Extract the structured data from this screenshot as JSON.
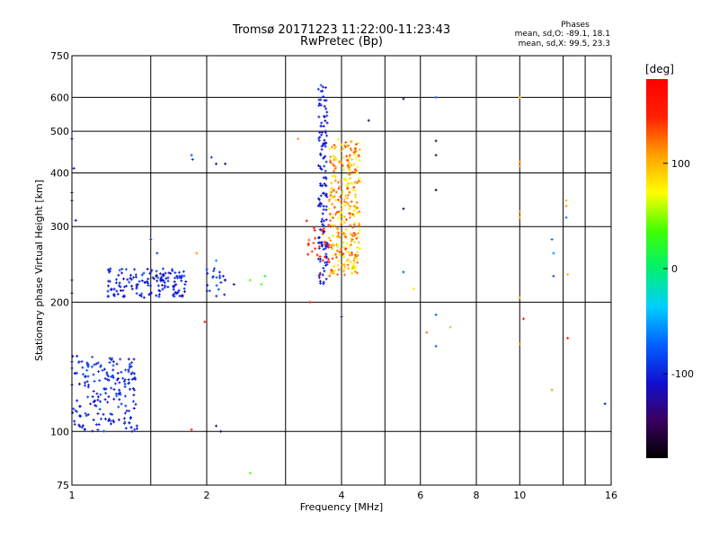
{
  "header": {
    "title": "Tromsø 20171223 11:22:00-11:23:43",
    "subtitle": "RwPretec (Bp)",
    "stats_title": "Phases",
    "stats_o": "mean, sd,O: -89.1, 18.1",
    "stats_x": "mean, sd,X:  99.5, 23.3"
  },
  "colors": {
    "grid": "#000000",
    "frame": "#000000",
    "colormap": [
      "#000000",
      "#3a0060",
      "#1010d0",
      "#0060ff",
      "#00d0ff",
      "#00f070",
      "#40ff00",
      "#ffff00",
      "#ffa000",
      "#ff2000",
      "#ff0000"
    ]
  },
  "chart_data": {
    "type": "scatter",
    "title": "Tromsø 20171223 11:22:00-11:23:43",
    "subtitle": "RwPretec (Bp)",
    "xlabel": "Frequency [MHz]",
    "ylabel": "Stationary phase Virtual Height [km]",
    "x_scale": "log",
    "y_scale": "log",
    "xlim": [
      1,
      16
    ],
    "ylim": [
      75,
      750
    ],
    "xticks": [
      1,
      2,
      4,
      6,
      8,
      10,
      16
    ],
    "xtick_labels": [
      "1",
      "2",
      "4",
      "6",
      "8",
      "10",
      "16"
    ],
    "yticks": [
      75,
      100,
      200,
      300,
      400,
      500,
      600,
      750
    ],
    "ytick_labels": [
      "75",
      "100",
      "200",
      "300",
      "400",
      "500",
      "600",
      "750"
    ],
    "grid": true,
    "colorbar": {
      "unit": "[deg]",
      "range": [
        -180,
        180
      ],
      "ticks": [
        100,
        0,
        -100
      ],
      "tick_labels": [
        "100",
        "0",
        "-100"
      ]
    },
    "clusters": [
      {
        "x": [
          1.0,
          1.4
        ],
        "y": [
          100,
          150
        ],
        "phase": [
          -120,
          -80
        ],
        "n": 190
      },
      {
        "x": [
          1.2,
          1.8
        ],
        "y": [
          205,
          240
        ],
        "phase": [
          -120,
          -85
        ],
        "n": 150
      },
      {
        "x": [
          2.0,
          2.2
        ],
        "y": [
          205,
          240
        ],
        "phase": [
          -110,
          -80
        ],
        "n": 20
      },
      {
        "x": [
          3.55,
          3.72
        ],
        "y": [
          220,
          640
        ],
        "phase": [
          -120,
          -90
        ],
        "n": 130
      },
      {
        "x": [
          3.75,
          4.4
        ],
        "y": [
          230,
          480
        ],
        "phase": [
          60,
          140
        ],
        "n": 300
      },
      {
        "x": [
          3.3,
          3.8
        ],
        "y": [
          230,
          310
        ],
        "phase": [
          130,
          170
        ],
        "n": 30
      }
    ],
    "points": [
      {
        "x": 1.0,
        "y": 480,
        "phase": -110
      },
      {
        "x": 1.01,
        "y": 410,
        "phase": -110
      },
      {
        "x": 1.0,
        "y": 360,
        "phase": -140
      },
      {
        "x": 1.0,
        "y": 345,
        "phase": -150
      },
      {
        "x": 1.02,
        "y": 310,
        "phase": -110
      },
      {
        "x": 1.0,
        "y": 225,
        "phase": -120
      },
      {
        "x": 1.0,
        "y": 210,
        "phase": -150
      },
      {
        "x": 1.5,
        "y": 280,
        "phase": -80
      },
      {
        "x": 1.55,
        "y": 260,
        "phase": -90
      },
      {
        "x": 1.85,
        "y": 440,
        "phase": -80
      },
      {
        "x": 1.86,
        "y": 430,
        "phase": -90
      },
      {
        "x": 1.9,
        "y": 260,
        "phase": 110
      },
      {
        "x": 2.05,
        "y": 435,
        "phase": -90
      },
      {
        "x": 2.1,
        "y": 420,
        "phase": -110
      },
      {
        "x": 2.2,
        "y": 420,
        "phase": -130
      },
      {
        "x": 2.1,
        "y": 250,
        "phase": -60
      },
      {
        "x": 2.2,
        "y": 225,
        "phase": -130
      },
      {
        "x": 2.3,
        "y": 220,
        "phase": -140
      },
      {
        "x": 2.5,
        "y": 225,
        "phase": 40
      },
      {
        "x": 2.7,
        "y": 230,
        "phase": 20
      },
      {
        "x": 2.65,
        "y": 220,
        "phase": 40
      },
      {
        "x": 1.98,
        "y": 180,
        "phase": 160
      },
      {
        "x": 1.85,
        "y": 101,
        "phase": 150
      },
      {
        "x": 2.1,
        "y": 103,
        "phase": -130
      },
      {
        "x": 2.15,
        "y": 100,
        "phase": -150
      },
      {
        "x": 2.5,
        "y": 80,
        "phase": 40
      },
      {
        "x": 3.2,
        "y": 480,
        "phase": 110
      },
      {
        "x": 3.6,
        "y": 640,
        "phase": -80
      },
      {
        "x": 3.6,
        "y": 620,
        "phase": -90
      },
      {
        "x": 3.6,
        "y": 575,
        "phase": -110
      },
      {
        "x": 3.4,
        "y": 200,
        "phase": 160
      },
      {
        "x": 4.0,
        "y": 185,
        "phase": -140
      },
      {
        "x": 4.6,
        "y": 530,
        "phase": -150
      },
      {
        "x": 5.5,
        "y": 595,
        "phase": -150
      },
      {
        "x": 5.5,
        "y": 330,
        "phase": -150
      },
      {
        "x": 5.5,
        "y": 235,
        "phase": -80
      },
      {
        "x": 5.8,
        "y": 215,
        "phase": 80
      },
      {
        "x": 6.5,
        "y": 600,
        "phase": -70
      },
      {
        "x": 6.5,
        "y": 475,
        "phase": -150
      },
      {
        "x": 6.5,
        "y": 440,
        "phase": -140
      },
      {
        "x": 6.5,
        "y": 365,
        "phase": -160
      },
      {
        "x": 6.5,
        "y": 187,
        "phase": -70
      },
      {
        "x": 6.5,
        "y": 158,
        "phase": -70
      },
      {
        "x": 6.2,
        "y": 170,
        "phase": 120
      },
      {
        "x": 7.0,
        "y": 175,
        "phase": 100
      },
      {
        "x": 10.0,
        "y": 600,
        "phase": 100
      },
      {
        "x": 10.0,
        "y": 425,
        "phase": 110
      },
      {
        "x": 10.0,
        "y": 415,
        "phase": 110
      },
      {
        "x": 10.0,
        "y": 325,
        "phase": 110
      },
      {
        "x": 10.0,
        "y": 315,
        "phase": 100
      },
      {
        "x": 10.0,
        "y": 205,
        "phase": 100
      },
      {
        "x": 10.2,
        "y": 183,
        "phase": 170
      },
      {
        "x": 10.0,
        "y": 160,
        "phase": 110
      },
      {
        "x": 10.0,
        "y": 100,
        "phase": -170
      },
      {
        "x": 11.8,
        "y": 280,
        "phase": -70
      },
      {
        "x": 11.9,
        "y": 260,
        "phase": -60
      },
      {
        "x": 11.9,
        "y": 230,
        "phase": -80
      },
      {
        "x": 11.8,
        "y": 125,
        "phase": 110
      },
      {
        "x": 12.7,
        "y": 345,
        "phase": 100
      },
      {
        "x": 12.7,
        "y": 335,
        "phase": 110
      },
      {
        "x": 12.7,
        "y": 315,
        "phase": -70
      },
      {
        "x": 12.8,
        "y": 232,
        "phase": 100
      },
      {
        "x": 12.8,
        "y": 165,
        "phase": 160
      },
      {
        "x": 15.5,
        "y": 116,
        "phase": -100
      }
    ]
  }
}
